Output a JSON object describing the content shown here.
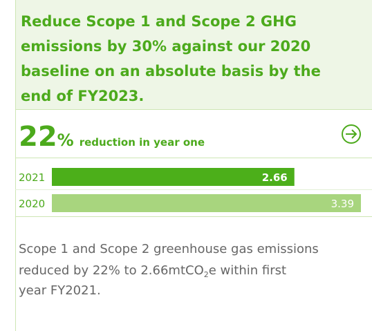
{
  "title": [
    "Reduce Scope 1 and Scope 2 GHG",
    "emissions by 30% against our 2020",
    "baseline on an absolute basis by the",
    "end of FY2023."
  ],
  "stat": {
    "number": "22",
    "unit": "%",
    "label": "reduction in year one"
  },
  "chart_data": {
    "type": "bar",
    "orientation": "horizontal",
    "categories": [
      "2021",
      "2020"
    ],
    "values": [
      2.66,
      3.39
    ],
    "colors": [
      "#4caf1a",
      "#a8d57e"
    ]
  },
  "description": [
    "Scope 1 and Scope 2 greenhouse gas emissions",
    "reduced by 22% to 2.66mtCO",
    "2",
    "e within first",
    "year FY2021."
  ]
}
